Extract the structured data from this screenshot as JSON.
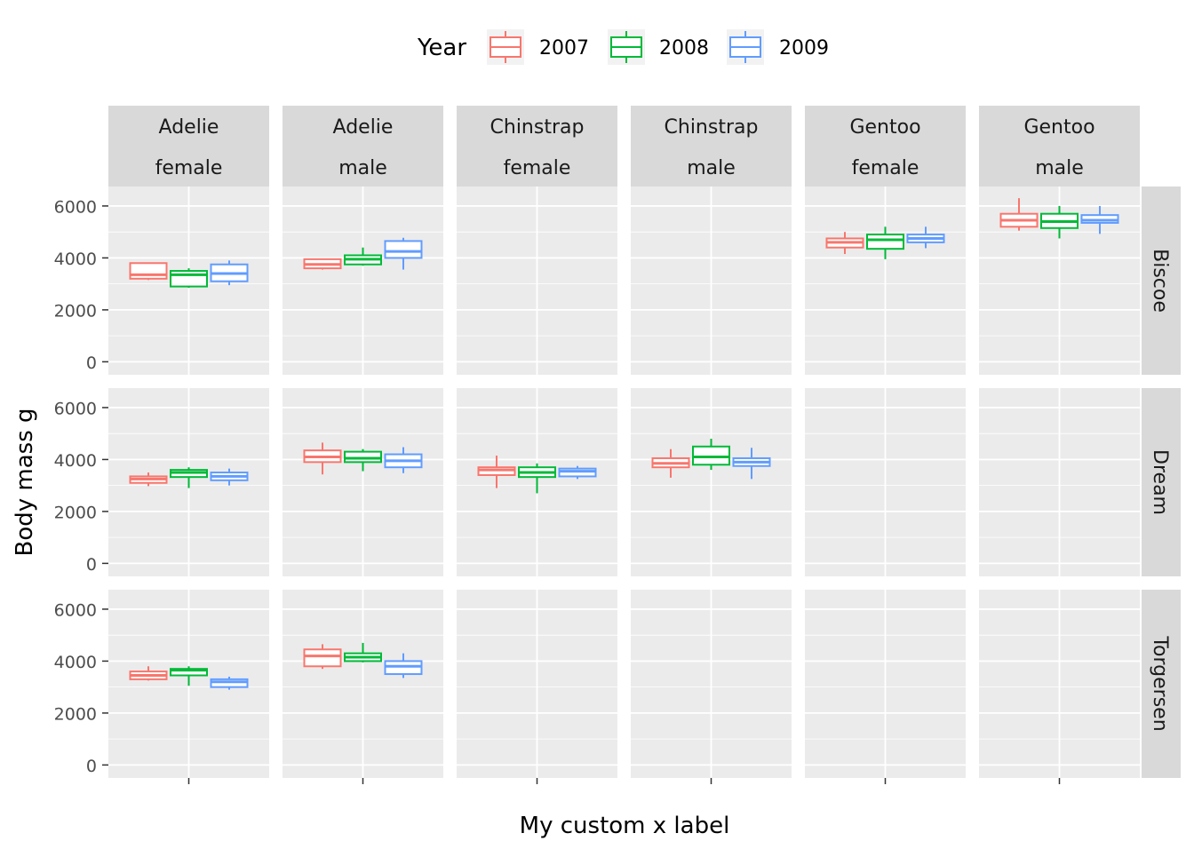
{
  "chart_data": {
    "type": "boxplot",
    "title": "",
    "xlabel": "My custom x label",
    "ylabel": "Body mass g",
    "ylim": [
      -500,
      6750
    ],
    "yticks": [
      0,
      2000,
      4000,
      6000
    ],
    "grid": true,
    "legend": {
      "title": "Year",
      "position": "top",
      "entries": [
        {
          "label": "2007",
          "color": "#F8766D"
        },
        {
          "label": "2008",
          "color": "#00BA38"
        },
        {
          "label": "2009",
          "color": "#619CFF"
        }
      ]
    },
    "facet_cols": [
      {
        "species": "Adelie",
        "sex": "female"
      },
      {
        "species": "Adelie",
        "sex": "male"
      },
      {
        "species": "Chinstrap",
        "sex": "female"
      },
      {
        "species": "Chinstrap",
        "sex": "male"
      },
      {
        "species": "Gentoo",
        "sex": "female"
      },
      {
        "species": "Gentoo",
        "sex": "male"
      }
    ],
    "facet_rows": [
      "Biscoe",
      "Dream",
      "Torgersen"
    ],
    "panels": [
      {
        "row": "Biscoe",
        "col": 0,
        "boxes": [
          {
            "year": "2007",
            "min": 3150,
            "q1": 3200,
            "median": 3350,
            "q3": 3800,
            "max": 3800
          },
          {
            "year": "2008",
            "min": 2850,
            "q1": 2900,
            "median": 3350,
            "q3": 3500,
            "max": 3600
          },
          {
            "year": "2009",
            "min": 2950,
            "q1": 3100,
            "median": 3400,
            "q3": 3750,
            "max": 3900
          }
        ]
      },
      {
        "row": "Biscoe",
        "col": 1,
        "boxes": [
          {
            "year": "2007",
            "min": 3550,
            "q1": 3600,
            "median": 3750,
            "q3": 3950,
            "max": 3950
          },
          {
            "year": "2008",
            "min": 3700,
            "q1": 3750,
            "median": 3950,
            "q3": 4100,
            "max": 4400
          },
          {
            "year": "2009",
            "min": 3550,
            "q1": 4000,
            "median": 4250,
            "q3": 4650,
            "max": 4775
          }
        ]
      },
      {
        "row": "Biscoe",
        "col": 2,
        "boxes": []
      },
      {
        "row": "Biscoe",
        "col": 3,
        "boxes": []
      },
      {
        "row": "Biscoe",
        "col": 4,
        "boxes": [
          {
            "year": "2007",
            "min": 4150,
            "q1": 4400,
            "median": 4600,
            "q3": 4750,
            "max": 5000
          },
          {
            "year": "2008",
            "min": 3950,
            "q1": 4350,
            "median": 4700,
            "q3": 4900,
            "max": 5200
          },
          {
            "year": "2009",
            "min": 4375,
            "q1": 4600,
            "median": 4750,
            "q3": 4900,
            "max": 5200
          }
        ]
      },
      {
        "row": "Biscoe",
        "col": 5,
        "boxes": [
          {
            "year": "2007",
            "min": 5050,
            "q1": 5200,
            "median": 5450,
            "q3": 5700,
            "max": 6300
          },
          {
            "year": "2008",
            "min": 4750,
            "q1": 5150,
            "median": 5400,
            "q3": 5700,
            "max": 6000
          },
          {
            "year": "2009",
            "min": 4925,
            "q1": 5350,
            "median": 5450,
            "q3": 5650,
            "max": 6000
          }
        ]
      },
      {
        "row": "Dream",
        "col": 0,
        "boxes": [
          {
            "year": "2007",
            "min": 2975,
            "q1": 3100,
            "median": 3250,
            "q3": 3350,
            "max": 3500
          },
          {
            "year": "2008",
            "min": 2900,
            "q1": 3325,
            "median": 3500,
            "q3": 3600,
            "max": 3700
          },
          {
            "year": "2009",
            "min": 3000,
            "q1": 3200,
            "median": 3350,
            "q3": 3500,
            "max": 3650
          }
        ]
      },
      {
        "row": "Dream",
        "col": 1,
        "boxes": [
          {
            "year": "2007",
            "min": 3425,
            "q1": 3900,
            "median": 4100,
            "q3": 4350,
            "max": 4650
          },
          {
            "year": "2008",
            "min": 3550,
            "q1": 3900,
            "median": 4050,
            "q3": 4300,
            "max": 4400
          },
          {
            "year": "2009",
            "min": 3475,
            "q1": 3700,
            "median": 3950,
            "q3": 4200,
            "max": 4475
          }
        ]
      },
      {
        "row": "Dream",
        "col": 2,
        "boxes": [
          {
            "year": "2007",
            "min": 2900,
            "q1": 3400,
            "median": 3600,
            "q3": 3700,
            "max": 4150
          },
          {
            "year": "2008",
            "min": 2700,
            "q1": 3325,
            "median": 3500,
            "q3": 3700,
            "max": 3850
          },
          {
            "year": "2009",
            "min": 3250,
            "q1": 3350,
            "median": 3550,
            "q3": 3650,
            "max": 3750
          }
        ]
      },
      {
        "row": "Dream",
        "col": 3,
        "boxes": [
          {
            "year": "2007",
            "min": 3300,
            "q1": 3700,
            "median": 3850,
            "q3": 4050,
            "max": 4400
          },
          {
            "year": "2008",
            "min": 3600,
            "q1": 3800,
            "median": 4100,
            "q3": 4500,
            "max": 4800
          },
          {
            "year": "2009",
            "min": 3250,
            "q1": 3750,
            "median": 3900,
            "q3": 4050,
            "max": 4450
          }
        ]
      },
      {
        "row": "Dream",
        "col": 4,
        "boxes": []
      },
      {
        "row": "Dream",
        "col": 5,
        "boxes": []
      },
      {
        "row": "Torgersen",
        "col": 0,
        "boxes": [
          {
            "year": "2007",
            "min": 3250,
            "q1": 3300,
            "median": 3450,
            "q3": 3600,
            "max": 3800
          },
          {
            "year": "2008",
            "min": 3050,
            "q1": 3450,
            "median": 3650,
            "q3": 3700,
            "max": 3800
          },
          {
            "year": "2009",
            "min": 2900,
            "q1": 3000,
            "median": 3200,
            "q3": 3300,
            "max": 3400
          }
        ]
      },
      {
        "row": "Torgersen",
        "col": 1,
        "boxes": [
          {
            "year": "2007",
            "min": 3700,
            "q1": 3800,
            "median": 4200,
            "q3": 4450,
            "max": 4650
          },
          {
            "year": "2008",
            "min": 3950,
            "q1": 4000,
            "median": 4150,
            "q3": 4300,
            "max": 4700
          },
          {
            "year": "2009",
            "min": 3350,
            "q1": 3500,
            "median": 3800,
            "q3": 4000,
            "max": 4300
          }
        ]
      },
      {
        "row": "Torgersen",
        "col": 2,
        "boxes": []
      },
      {
        "row": "Torgersen",
        "col": 3,
        "boxes": []
      },
      {
        "row": "Torgersen",
        "col": 4,
        "boxes": []
      },
      {
        "row": "Torgersen",
        "col": 5,
        "boxes": []
      }
    ]
  }
}
